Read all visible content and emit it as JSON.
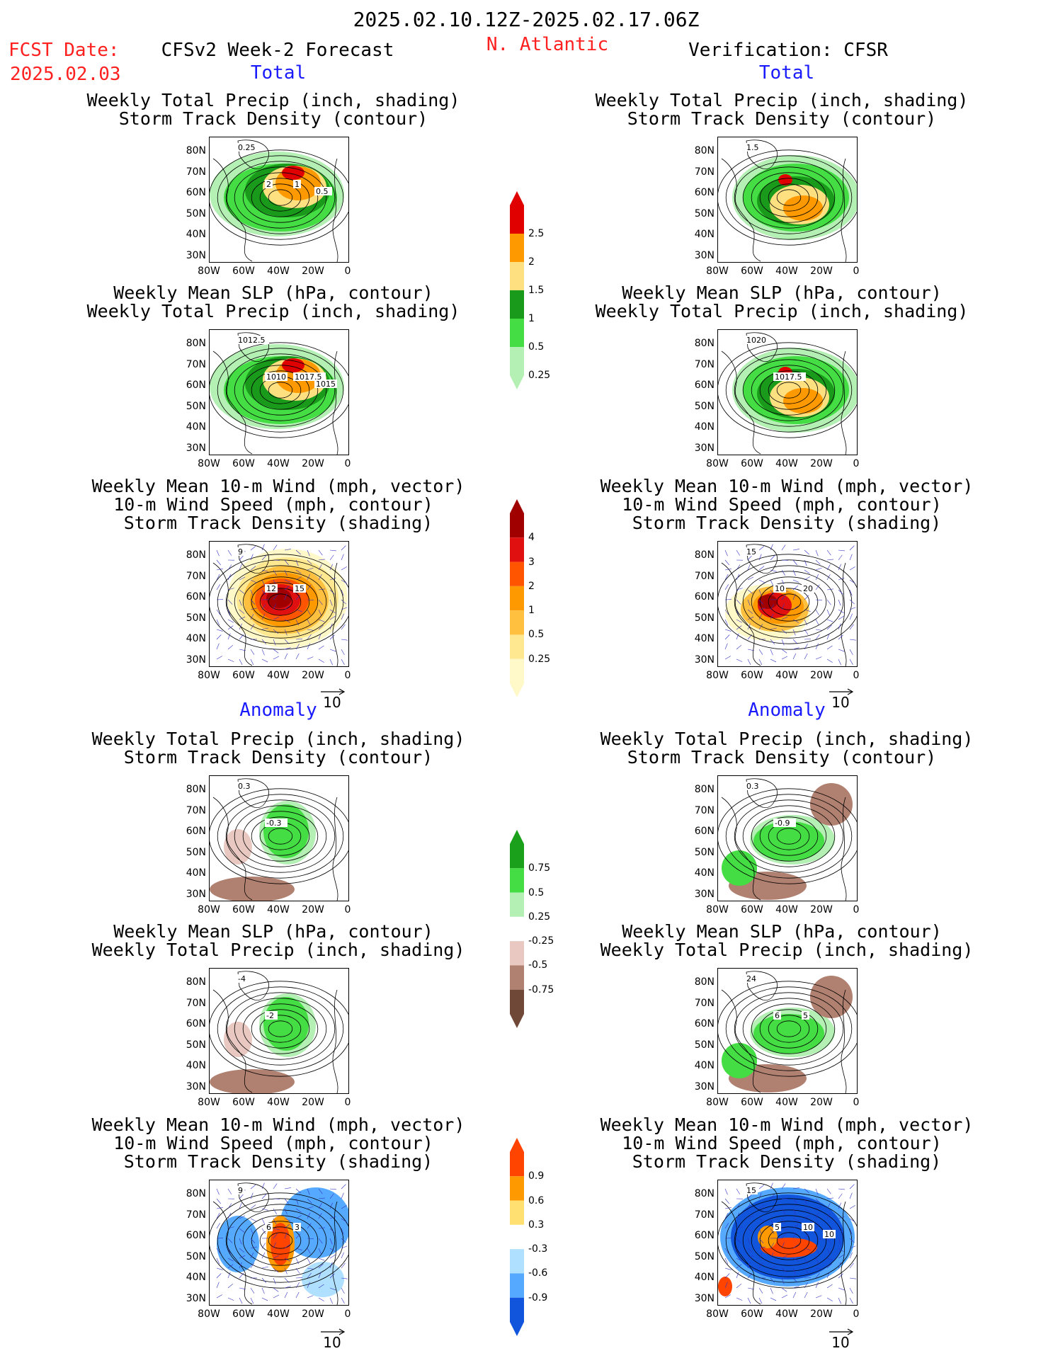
{
  "header": {
    "period": "2025.02.10.12Z-2025.02.17.06Z",
    "fcst_label": "FCST Date:",
    "fcst_date": "2025.02.03",
    "left_model": "CFSv2 Week-2 Forecast",
    "region": "N. Atlantic",
    "right_model": "Verification: CFSR"
  },
  "sections": {
    "total": "Total",
    "anomaly": "Anomaly"
  },
  "panel_titles": {
    "precip_storm": [
      "Weekly Total Precip (inch, shading)",
      "Storm Track Density (contour)"
    ],
    "slp_precip": [
      "Weekly Mean SLP (hPa, contour)",
      "Weekly Total Precip (inch, shading)"
    ],
    "wind": [
      "Weekly Mean 10-m Wind (mph, vector)",
      "10-m Wind Speed (mph, contour)",
      "Storm Track Density (shading)"
    ]
  },
  "axes": {
    "lat_ticks": [
      "80N",
      "70N",
      "60N",
      "50N",
      "40N",
      "30N"
    ],
    "lon_ticks": [
      "80W",
      "60W",
      "40W",
      "20W",
      "0"
    ]
  },
  "vector_ref": "10",
  "colorbars": {
    "precip_total": {
      "labels": [
        "2.5",
        "2",
        "1.5",
        "1",
        "0.5",
        "0.25"
      ],
      "colors": [
        "#e00000",
        "#ff9900",
        "#ffe080",
        "#1a9a1a",
        "#44dd44",
        "#b4f0b4"
      ]
    },
    "storm_total": {
      "labels": [
        "4",
        "3",
        "2",
        "1",
        "0.5",
        "0.25"
      ],
      "colors": [
        "#a00000",
        "#e01010",
        "#ff5500",
        "#ff9900",
        "#ffc040",
        "#ffe890",
        "#fff8c8"
      ]
    },
    "precip_anom": {
      "labels": [
        "0.75",
        "0.5",
        "0.25",
        "-0.25",
        "-0.5",
        "-0.75"
      ],
      "colors": [
        "#1aa01a",
        "#44dd44",
        "#b4f0b4",
        "#ffffff",
        "#e8c8c0",
        "#b08070",
        "#704838"
      ]
    },
    "storm_anom": {
      "labels": [
        "0.9",
        "0.6",
        "0.3",
        "-0.3",
        "-0.6",
        "-0.9"
      ],
      "colors": [
        "#ff4400",
        "#ff9900",
        "#ffe070",
        "#ffffff",
        "#b0e0ff",
        "#55aaff",
        "#1155dd"
      ]
    }
  },
  "map_labels": {
    "p1": [
      "0.25",
      "2",
      "1",
      "0.5"
    ],
    "p2": [
      "1.5"
    ],
    "p3": [
      "1012.5",
      "1010",
      "1017.5",
      "1015"
    ],
    "p4": [
      "1020",
      "1017.5"
    ],
    "p5": [
      "9",
      "12",
      "15"
    ],
    "p6": [
      "15",
      "10",
      "20"
    ],
    "p7": [
      "0.3",
      "-0.3"
    ],
    "p8": [
      "0.3",
      "-0.9"
    ],
    "p9": [
      "-4",
      "-2"
    ],
    "p10": [
      "24",
      "6",
      "5"
    ],
    "p11": [
      "9",
      "6",
      "3"
    ],
    "p12": [
      "15",
      "5",
      "10",
      "10"
    ]
  }
}
